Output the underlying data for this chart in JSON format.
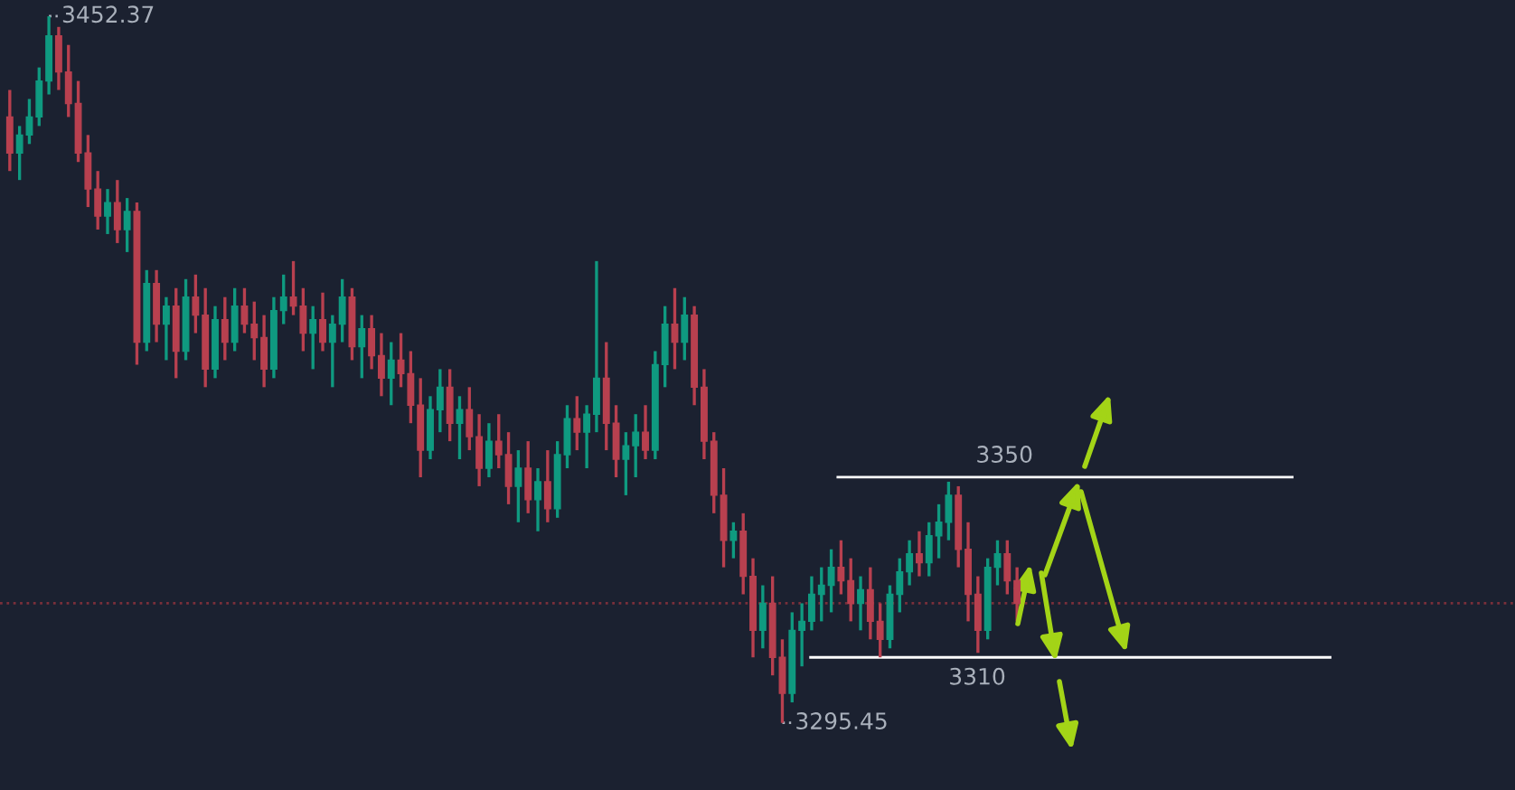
{
  "chart_data": {
    "type": "candlestick",
    "categories": [
      null,
      null,
      null,
      null,
      null,
      null,
      null,
      null,
      null,
      null,
      null,
      null,
      null,
      null,
      null,
      null,
      null,
      null,
      null,
      null,
      null,
      null,
      null,
      null,
      null,
      null,
      null,
      null,
      null,
      null,
      null,
      null,
      null,
      null,
      null,
      null,
      null,
      null,
      null,
      null,
      null,
      null,
      null,
      null,
      null,
      null,
      null,
      null,
      null,
      null,
      null,
      null,
      null,
      null,
      null,
      null,
      null,
      null,
      null,
      null,
      null,
      null,
      null,
      null,
      null,
      null,
      null,
      null,
      null,
      null,
      null,
      null,
      null,
      null,
      null,
      null,
      null,
      null,
      null,
      null,
      null,
      null,
      null,
      null,
      null,
      null,
      null,
      null,
      null,
      null,
      null,
      null,
      null,
      null,
      null,
      null,
      null,
      null,
      null,
      null,
      null,
      null,
      null,
      null
    ],
    "ohlc": [
      [
        3430,
        3436,
        3418,
        3422
      ],
      [
        3422,
        3428,
        3416,
        3426
      ],
      [
        3426,
        3434,
        3424,
        3430
      ],
      [
        3430,
        3441,
        3428,
        3438
      ],
      [
        3438,
        3452.37,
        3435,
        3448
      ],
      [
        3448,
        3450,
        3436,
        3440
      ],
      [
        3440,
        3446,
        3430,
        3433
      ],
      [
        3433,
        3438,
        3420,
        3422
      ],
      [
        3422,
        3426,
        3410,
        3414
      ],
      [
        3414,
        3418,
        3405,
        3408
      ],
      [
        3408,
        3414,
        3404,
        3411
      ],
      [
        3411,
        3416,
        3402,
        3405
      ],
      [
        3405,
        3412,
        3400,
        3409
      ],
      [
        3409,
        3411,
        3375,
        3380
      ],
      [
        3380,
        3396,
        3378,
        3393
      ],
      [
        3393,
        3396,
        3380,
        3384
      ],
      [
        3384,
        3390,
        3376,
        3388
      ],
      [
        3388,
        3392,
        3372,
        3378
      ],
      [
        3378,
        3394,
        3376,
        3390
      ],
      [
        3390,
        3395,
        3382,
        3386
      ],
      [
        3386,
        3392,
        3370,
        3374
      ],
      [
        3374,
        3388,
        3372,
        3385
      ],
      [
        3385,
        3390,
        3376,
        3380
      ],
      [
        3380,
        3392,
        3378,
        3388
      ],
      [
        3388,
        3392,
        3382,
        3384
      ],
      [
        3384,
        3389,
        3376,
        3381
      ],
      [
        3381,
        3386,
        3370,
        3374
      ],
      [
        3374,
        3390,
        3372,
        3387
      ],
      [
        3387,
        3395,
        3384,
        3390
      ],
      [
        3390,
        3398,
        3386,
        3388
      ],
      [
        3388,
        3392,
        3378,
        3382
      ],
      [
        3382,
        3388,
        3374,
        3385
      ],
      [
        3385,
        3391,
        3378,
        3380
      ],
      [
        3380,
        3386,
        3370,
        3384
      ],
      [
        3384,
        3394,
        3380,
        3390
      ],
      [
        3390,
        3392,
        3376,
        3379
      ],
      [
        3379,
        3386,
        3372,
        3383
      ],
      [
        3383,
        3386,
        3374,
        3377
      ],
      [
        3377,
        3382,
        3368,
        3372
      ],
      [
        3372,
        3380,
        3366,
        3376
      ],
      [
        3376,
        3382,
        3370,
        3373
      ],
      [
        3373,
        3378,
        3362,
        3366
      ],
      [
        3366,
        3372,
        3350,
        3356
      ],
      [
        3356,
        3368,
        3354,
        3365
      ],
      [
        3365,
        3374,
        3360,
        3370
      ],
      [
        3370,
        3374,
        3358,
        3362
      ],
      [
        3362,
        3368,
        3354,
        3365
      ],
      [
        3365,
        3370,
        3356,
        3359
      ],
      [
        3359,
        3364,
        3348,
        3352
      ],
      [
        3352,
        3362,
        3350,
        3358
      ],
      [
        3358,
        3364,
        3352,
        3355
      ],
      [
        3355,
        3360,
        3344,
        3348
      ],
      [
        3348,
        3356,
        3340,
        3352
      ],
      [
        3352,
        3358,
        3342,
        3345
      ],
      [
        3345,
        3352,
        3338,
        3349
      ],
      [
        3349,
        3356,
        3340,
        3343
      ],
      [
        3343,
        3358,
        3341,
        3355
      ],
      [
        3355,
        3366,
        3352,
        3363
      ],
      [
        3363,
        3368,
        3356,
        3360
      ],
      [
        3360,
        3366,
        3352,
        3364
      ],
      [
        3364,
        3398,
        3360,
        3372
      ],
      [
        3372,
        3380,
        3356,
        3362
      ],
      [
        3362,
        3366,
        3350,
        3354
      ],
      [
        3354,
        3360,
        3346,
        3357
      ],
      [
        3357,
        3364,
        3350,
        3360
      ],
      [
        3360,
        3366,
        3354,
        3356
      ],
      [
        3356,
        3378,
        3354,
        3375
      ],
      [
        3375,
        3388,
        3370,
        3384
      ],
      [
        3384,
        3392,
        3374,
        3380
      ],
      [
        3380,
        3390,
        3376,
        3386
      ],
      [
        3386,
        3388,
        3366,
        3370
      ],
      [
        3370,
        3374,
        3354,
        3358
      ],
      [
        3358,
        3360,
        3342,
        3346
      ],
      [
        3346,
        3352,
        3330,
        3336
      ],
      [
        3336,
        3340,
        3332,
        3338
      ],
      [
        3338,
        3342,
        3324,
        3328
      ],
      [
        3328,
        3332,
        3310,
        3316
      ],
      [
        3316,
        3326,
        3312,
        3322
      ],
      [
        3322,
        3328,
        3306,
        3310
      ],
      [
        3310,
        3314,
        3295.45,
        3302
      ],
      [
        3302,
        3320,
        3300,
        3316
      ],
      [
        3316,
        3322,
        3308,
        3318
      ],
      [
        3318,
        3328,
        3316,
        3324
      ],
      [
        3324,
        3330,
        3318,
        3326
      ],
      [
        3326,
        3334,
        3320,
        3330
      ],
      [
        3330,
        3336,
        3324,
        3327
      ],
      [
        3327,
        3332,
        3318,
        3322
      ],
      [
        3322,
        3328,
        3316,
        3325
      ],
      [
        3325,
        3330,
        3314,
        3318
      ],
      [
        3318,
        3322,
        3310,
        3314
      ],
      [
        3314,
        3326,
        3312,
        3324
      ],
      [
        3324,
        3332,
        3320,
        3329
      ],
      [
        3329,
        3336,
        3326,
        3333
      ],
      [
        3333,
        3338,
        3328,
        3331
      ],
      [
        3331,
        3340,
        3328,
        3337
      ],
      [
        3337,
        3344,
        3332,
        3340
      ],
      [
        3340,
        3349,
        3336,
        3346
      ],
      [
        3346,
        3348,
        3330,
        3334
      ],
      [
        3334,
        3340,
        3318,
        3324
      ],
      [
        3324,
        3328,
        3311,
        3316
      ],
      [
        3316,
        3332,
        3314,
        3330
      ],
      [
        3330,
        3336,
        3326,
        3333
      ],
      [
        3333,
        3336,
        3324,
        3327
      ],
      [
        3327,
        3330,
        3318,
        3322
      ]
    ],
    "colors": [
      "#b8404f",
      "#0f9a80",
      "#0f9a80",
      "#0f9a80",
      "#0f9a80",
      "#b8404f",
      "#b8404f",
      "#b8404f",
      "#b8404f",
      "#b8404f",
      "#0f9a80",
      "#b8404f",
      "#0f9a80",
      "#b8404f",
      "#0f9a80",
      "#b8404f",
      "#0f9a80",
      "#b8404f",
      "#0f9a80",
      "#b8404f",
      "#b8404f",
      "#0f9a80",
      "#b8404f",
      "#0f9a80",
      "#b8404f",
      "#b8404f",
      "#b8404f",
      "#0f9a80",
      "#0f9a80",
      "#b8404f",
      "#b8404f",
      "#0f9a80",
      "#b8404f",
      "#0f9a80",
      "#0f9a80",
      "#b8404f",
      "#0f9a80",
      "#b8404f",
      "#b8404f",
      "#0f9a80",
      "#b8404f",
      "#b8404f",
      "#b8404f",
      "#0f9a80",
      "#0f9a80",
      "#b8404f",
      "#0f9a80",
      "#b8404f",
      "#b8404f",
      "#0f9a80",
      "#b8404f",
      "#b8404f",
      "#0f9a80",
      "#b8404f",
      "#0f9a80",
      "#b8404f",
      "#0f9a80",
      "#0f9a80",
      "#b8404f",
      "#0f9a80",
      "#0f9a80",
      "#b8404f",
      "#b8404f",
      "#0f9a80",
      "#0f9a80",
      "#b8404f",
      "#0f9a80",
      "#0f9a80",
      "#b8404f",
      "#0f9a80",
      "#b8404f",
      "#b8404f",
      "#b8404f",
      "#b8404f",
      "#0f9a80",
      "#b8404f",
      "#b8404f",
      "#0f9a80",
      "#b8404f",
      "#b8404f",
      "#0f9a80",
      "#0f9a80",
      "#0f9a80",
      "#0f9a80",
      "#0f9a80",
      "#b8404f",
      "#b8404f",
      "#0f9a80",
      "#b8404f",
      "#b8404f",
      "#0f9a80",
      "#0f9a80",
      "#0f9a80",
      "#b8404f",
      "#0f9a80",
      "#0f9a80",
      "#0f9a80",
      "#b8404f",
      "#b8404f",
      "#b8404f",
      "#0f9a80",
      "#0f9a80",
      "#b8404f",
      "#b8404f"
    ],
    "annotations": [
      "3452.37",
      "3295.45"
    ],
    "ref_lines": [
      {
        "axis": "y",
        "value": 3350,
        "label": "3350",
        "color": "#ffffff",
        "line_style": "solid"
      },
      {
        "axis": "y",
        "value": 3310,
        "label": "3310",
        "color": "#ffffff",
        "line_style": "solid"
      },
      {
        "axis": "y",
        "value": 3322,
        "label": null,
        "color": "#7a2f3a",
        "line_style": "dotted"
      }
    ],
    "tick_labels": false
  }
}
